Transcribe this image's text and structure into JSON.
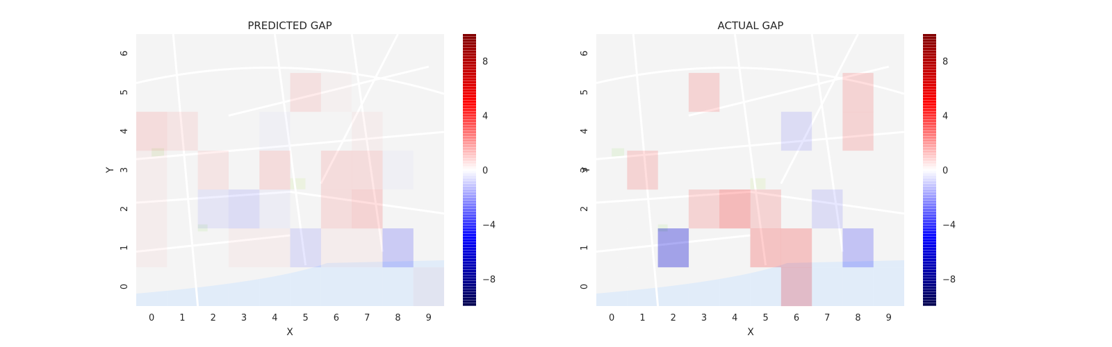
{
  "chart_data": [
    {
      "type": "heatmap",
      "title": "PREDICTED GAP",
      "xlabel": "X",
      "ylabel": "Y",
      "x_ticks": [
        "0",
        "1",
        "2",
        "3",
        "4",
        "5",
        "6",
        "7",
        "8",
        "9"
      ],
      "y_ticks": [
        "0",
        "1",
        "2",
        "3",
        "4",
        "5",
        "6"
      ],
      "background": "street map",
      "colormap": "seismic",
      "vlim": [
        -10,
        10
      ],
      "colorbar_ticks": [
        "8",
        "4",
        "0",
        "−4",
        "−8"
      ],
      "colorbar_values": [
        8,
        4,
        0,
        -4,
        -8
      ],
      "values": [
        [
          0,
          0,
          0,
          0,
          0,
          0,
          0,
          0,
          0,
          0.5
        ],
        [
          0.5,
          0,
          0,
          0.5,
          0.5,
          -1.5,
          0.5,
          0.5,
          -2.5,
          0
        ],
        [
          0.5,
          0,
          -1,
          -1.5,
          -0.5,
          0,
          1.5,
          2,
          0,
          0
        ],
        [
          0.5,
          0,
          1,
          0,
          1.5,
          0,
          1.5,
          1.5,
          -0.3,
          0
        ],
        [
          1.5,
          1,
          0,
          0,
          -0.3,
          0,
          0,
          0.5,
          0,
          0
        ],
        [
          0,
          0,
          0,
          0,
          0,
          1.2,
          0.3,
          0,
          0,
          0
        ],
        [
          0,
          0,
          0,
          0,
          0,
          0,
          0,
          0,
          0,
          0
        ]
      ]
    },
    {
      "type": "heatmap",
      "title": "ACTUAL GAP",
      "xlabel": "X",
      "ylabel": "Y",
      "x_ticks": [
        "0",
        "1",
        "2",
        "3",
        "4",
        "5",
        "6",
        "7",
        "8",
        "9"
      ],
      "y_ticks": [
        "0",
        "1",
        "2",
        "3",
        "4",
        "5",
        "6"
      ],
      "background": "street map",
      "colormap": "seismic",
      "vlim": [
        -10,
        10
      ],
      "colorbar_ticks": [
        "8",
        "4",
        "0",
        "−4",
        "−8"
      ],
      "colorbar_values": [
        8,
        4,
        0,
        -4,
        -8
      ],
      "values": [
        [
          0,
          0,
          0,
          0,
          0,
          0,
          3,
          0,
          0,
          0
        ],
        [
          0,
          0,
          -6,
          0,
          0,
          3,
          3,
          0,
          -3,
          0
        ],
        [
          0,
          0,
          0,
          2,
          3.5,
          2,
          0,
          -1.5,
          0,
          0
        ],
        [
          0,
          2,
          0,
          0,
          0,
          0,
          0,
          0,
          0,
          0
        ],
        [
          0,
          0,
          0,
          0,
          0,
          0,
          -1.5,
          0,
          2,
          0
        ],
        [
          0,
          0,
          0,
          2,
          0,
          0,
          0,
          0,
          2,
          0
        ],
        [
          0,
          0,
          0,
          0,
          0,
          0,
          0,
          0,
          0,
          0
        ]
      ]
    }
  ]
}
